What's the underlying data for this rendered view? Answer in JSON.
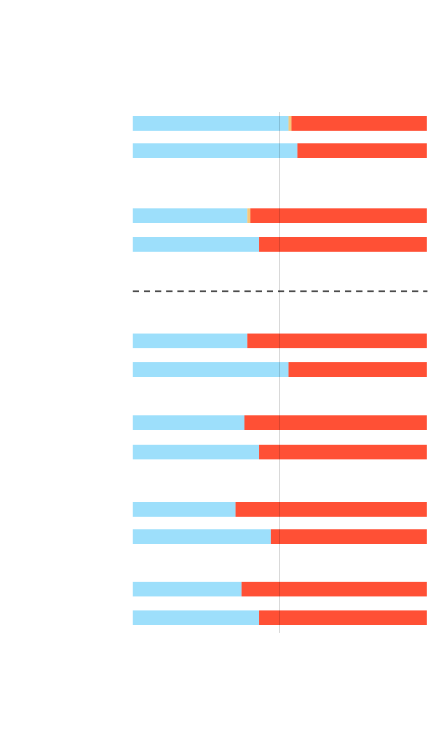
{
  "chart_data": {
    "type": "stacked-bar-horizontal",
    "categories": [
      null,
      null,
      null,
      null,
      null,
      null,
      null,
      null,
      null,
      null,
      null,
      null
    ],
    "series": [
      {
        "color": "#9ddffb",
        "values": [
          53,
          56,
          39,
          43,
          39,
          53,
          38,
          43,
          35,
          47,
          37,
          43
        ]
      },
      {
        "color": "#f7c77a",
        "values": [
          1,
          0,
          1,
          0,
          0,
          0,
          0,
          0,
          0,
          0,
          0,
          0
        ]
      },
      {
        "color": "#ff5035",
        "values": [
          46,
          44,
          60,
          57,
          61,
          47,
          62,
          57,
          65,
          53,
          63,
          57
        ]
      }
    ],
    "xlim": [
      0,
      100
    ],
    "reference_line": 50
  }
}
